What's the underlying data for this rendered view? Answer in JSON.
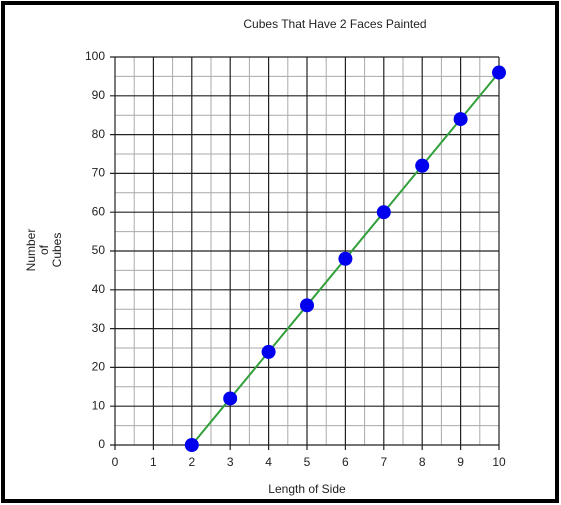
{
  "chart_data": {
    "type": "scatter",
    "title": "Cubes That Have 2 Faces Painted",
    "xlabel": "Length of Side",
    "ylabel": [
      "Number",
      "of",
      "Cubes"
    ],
    "x": [
      2,
      3,
      4,
      5,
      6,
      7,
      8,
      9,
      10
    ],
    "series": [
      {
        "name": "Cubes",
        "color": "#0000ee",
        "line_color": "#33a03c",
        "values": [
          0,
          12,
          24,
          36,
          48,
          60,
          72,
          84,
          96
        ]
      }
    ],
    "xlim": [
      0,
      10
    ],
    "xticks": [
      0,
      1,
      2,
      3,
      4,
      5,
      6,
      7,
      8,
      9,
      10
    ],
    "ylim": [
      0,
      100
    ],
    "yticks": [
      0,
      10,
      20,
      30,
      40,
      50,
      60,
      70,
      80,
      90,
      100
    ],
    "grid": true,
    "minor_grid": true
  }
}
